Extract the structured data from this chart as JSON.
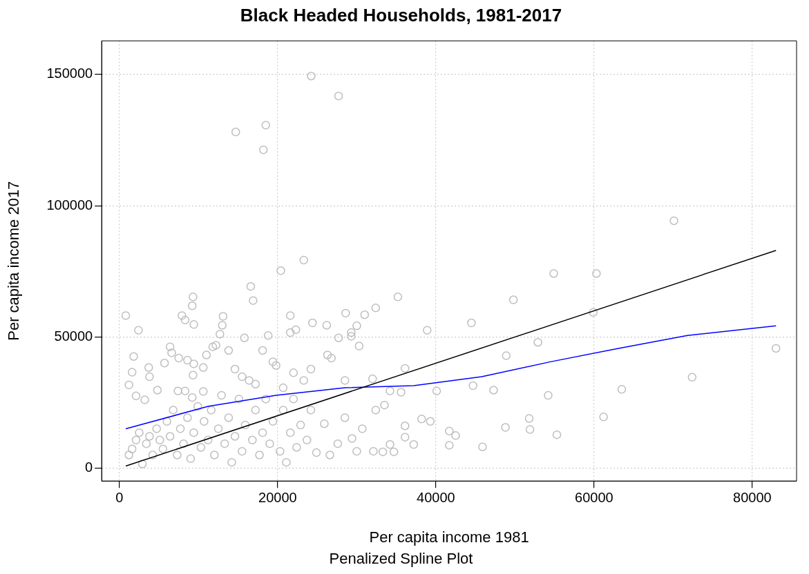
{
  "chart_data": {
    "type": "scatter",
    "title": "Black Headed Households, 1981-2017",
    "subtitle": "Penalized Spline Plot",
    "xlabel": "Per capita income 1981",
    "ylabel": "Per capita income 2017",
    "xlim": [
      -2250,
      85600
    ],
    "ylim": [
      -4800,
      162800
    ],
    "xticks": [
      0,
      20000,
      40000,
      60000,
      80000
    ],
    "yticks": [
      0,
      50000,
      100000,
      150000
    ],
    "grid": true,
    "legend": false,
    "series": [
      {
        "type": "scatter",
        "color": "#bebebe",
        "marker": "circle",
        "x": [
          24250,
          27700,
          14700,
          18500,
          18200,
          70100,
          54900,
          60300,
          59900,
          83000,
          72400,
          49800,
          52900,
          48900,
          44500,
          35200,
          32400,
          38900,
          36100,
          40100,
          44700,
          47300,
          54200,
          63500,
          61200,
          51800,
          51900,
          55300,
          48800,
          45900,
          41700,
          42500,
          41700,
          39300,
          38200,
          36100,
          36100,
          37200,
          34200,
          34700,
          33300,
          32100,
          33500,
          32400,
          35600,
          34200,
          32000,
          30300,
          26300,
          26800,
          30000,
          28600,
          31000,
          27700,
          29300,
          29300,
          23300,
          20400,
          16600,
          16900,
          24400,
          26200,
          21600,
          21600,
          22300,
          18800,
          15800,
          13100,
          13000,
          12700,
          800,
          2400,
          7900,
          8300,
          9400,
          9200,
          9300,
          6400,
          6600,
          1800,
          7500,
          8600,
          11000,
          11800,
          12200,
          5700,
          1600,
          3700,
          3800,
          9400,
          10600,
          9300,
          1200,
          2100,
          3200,
          4800,
          7400,
          8300,
          9200,
          10600,
          1200,
          1600,
          2100,
          2500,
          2900,
          3400,
          3800,
          4200,
          4700,
          5100,
          5500,
          6000,
          6400,
          6800,
          7300,
          7700,
          8100,
          8600,
          9000,
          9400,
          9900,
          10300,
          10700,
          11200,
          11600,
          12000,
          12500,
          12900,
          13300,
          13800,
          14200,
          14600,
          15100,
          15500,
          15900,
          16400,
          16800,
          17200,
          17700,
          18100,
          18500,
          19000,
          19400,
          19800,
          20300,
          20700,
          21100,
          21600,
          22000,
          22400,
          22900,
          23300,
          23700,
          24200,
          24900,
          25900,
          26600,
          27600,
          28500,
          29400,
          30000,
          30700,
          28500,
          14600,
          15500,
          13800,
          17200,
          19400,
          20700,
          22000,
          24200,
          18100
        ],
        "values": [
          149400,
          141800,
          128100,
          130700,
          121300,
          94300,
          74200,
          74200,
          59400,
          45700,
          34700,
          64200,
          48000,
          42900,
          55400,
          65300,
          61100,
          52600,
          38100,
          29500,
          31500,
          29800,
          27800,
          30100,
          19600,
          19000,
          14800,
          12800,
          15600,
          8200,
          14200,
          12500,
          8800,
          17900,
          18800,
          16200,
          11900,
          9100,
          9100,
          6300,
          6300,
          6500,
          24100,
          22200,
          29000,
          29500,
          34100,
          46600,
          43200,
          42000,
          54300,
          59100,
          58500,
          49700,
          51700,
          50300,
          79300,
          75300,
          69300,
          63900,
          55400,
          54500,
          58200,
          51700,
          52800,
          50600,
          49700,
          57900,
          54500,
          51100,
          58200,
          52600,
          58200,
          56500,
          54800,
          61900,
          65300,
          46300,
          44000,
          42600,
          42000,
          41200,
          43200,
          46300,
          46900,
          40100,
          36600,
          38400,
          34900,
          39800,
          38400,
          35500,
          31800,
          27600,
          26100,
          29800,
          29500,
          29500,
          27000,
          29300,
          5100,
          7400,
          10800,
          13600,
          1700,
          9400,
          12200,
          5100,
          15100,
          10800,
          7400,
          17900,
          12200,
          22200,
          5100,
          15100,
          9400,
          19300,
          3700,
          13600,
          23600,
          8000,
          17900,
          10800,
          22200,
          5100,
          15100,
          27800,
          9400,
          19300,
          2300,
          12200,
          26400,
          6500,
          16500,
          33500,
          10800,
          22200,
          5100,
          13600,
          26400,
          9400,
          17900,
          39200,
          6500,
          22200,
          2300,
          13600,
          26400,
          8000,
          16500,
          33500,
          10800,
          22200,
          6000,
          17000,
          5100,
          9400,
          19300,
          11400,
          6500,
          15100,
          33500,
          37800,
          34900,
          44900,
          32100,
          40600,
          30700,
          36400,
          37800,
          44900
        ]
      },
      {
        "type": "line",
        "color": "#000000",
        "marker": "none",
        "x": [
          800,
          83000
        ],
        "values": [
          900,
          83000
        ]
      },
      {
        "type": "line",
        "color": "#0000ff",
        "marker": "none",
        "x": [
          800,
          11200,
          19800,
          28500,
          37200,
          45800,
          54500,
          63100,
          71800,
          83000
        ],
        "values": [
          15100,
          23600,
          27800,
          30700,
          31500,
          34900,
          40600,
          45700,
          50600,
          54300
        ]
      }
    ]
  }
}
